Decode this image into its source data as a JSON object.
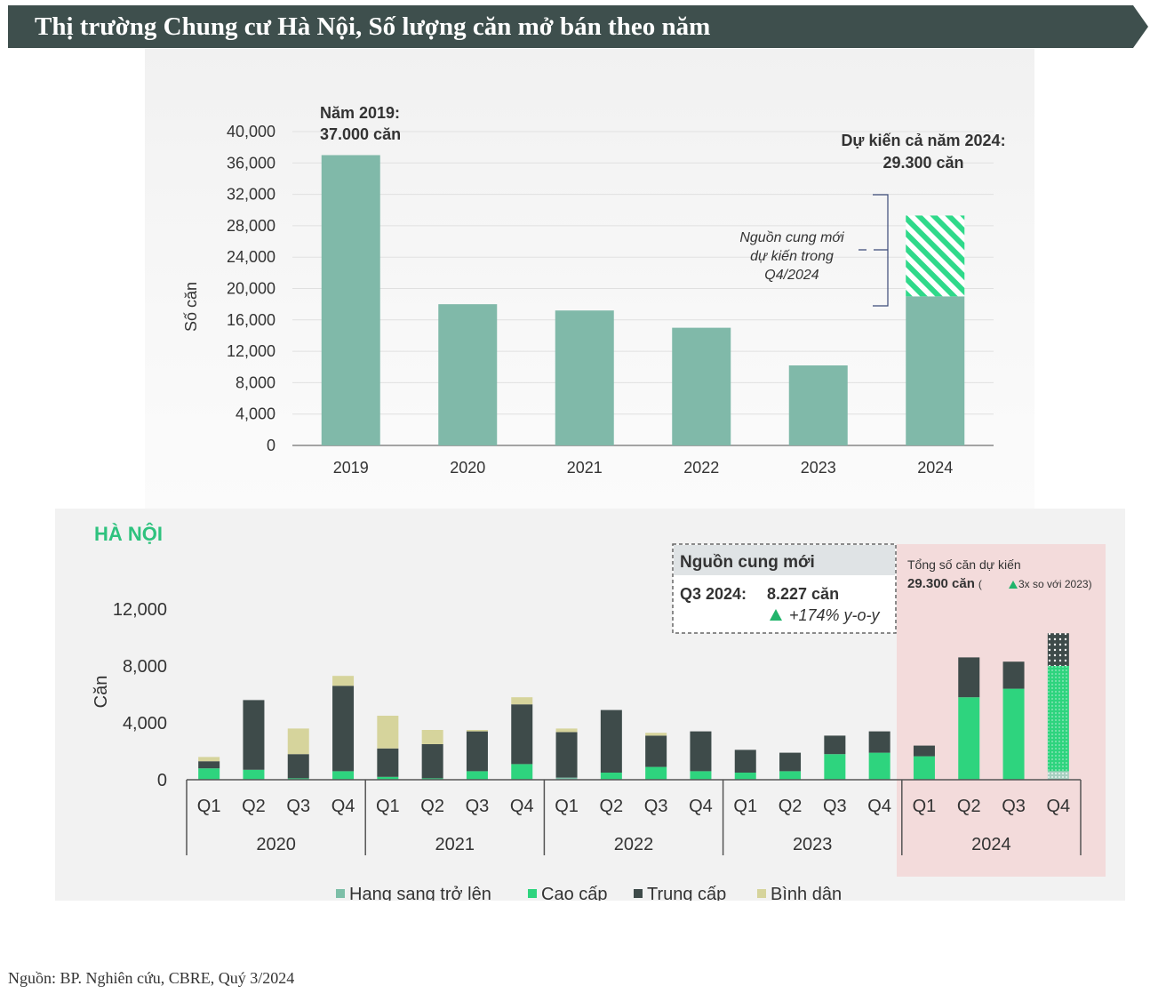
{
  "header": {
    "title": "Thị trường Chung cư Hà Nội, Số lượng căn mở bán theo năm"
  },
  "colors": {
    "banner": "#3e4f4d",
    "annual_bar": "#80b9a9",
    "hatch": "#2fd98a",
    "luxury": "#7dbfa8",
    "high_end": "#2ed47e",
    "mid_end": "#3e4b4a",
    "affordable": "#d6d49c",
    "forecast_bg": "#f3dbdb"
  },
  "chart_data": [
    {
      "type": "bar",
      "title": "Thị trường Chung cư Hà Nội, Số lượng căn mở bán theo năm",
      "ylabel": "Số căn",
      "ylim": [
        0,
        40000
      ],
      "ytick_labels": [
        "0",
        "4,000",
        "8,000",
        "12,000",
        "16,000",
        "20,000",
        "24,000",
        "28,000",
        "32,000",
        "36,000",
        "40,000"
      ],
      "categories": [
        "2019",
        "2020",
        "2021",
        "2022",
        "2023",
        "2024"
      ],
      "values": [
        37000,
        18000,
        17200,
        15000,
        10200,
        19000
      ],
      "forecast_extra": {
        "category": "2024",
        "value": 10300
      },
      "annotations": {
        "y2019_line1": "Năm 2019:",
        "y2019_line2": "37.000 căn",
        "y2024_line1": "Dự kiến cả năm 2024:",
        "y2024_line2": "29.300 căn",
        "new_supply_line1": "Nguồn cung mới",
        "new_supply_line2": "dự kiến trong",
        "new_supply_line3": "Q4/2024"
      }
    },
    {
      "type": "bar",
      "stacked": true,
      "title": "HÀ NỘI",
      "ylabel": "Căn",
      "ylim": [
        0,
        12000
      ],
      "ytick_labels": [
        "0",
        "4,000",
        "8,000",
        "12,000"
      ],
      "quarters": [
        "Q1",
        "Q2",
        "Q3",
        "Q4",
        "Q1",
        "Q2",
        "Q3",
        "Q4",
        "Q1",
        "Q2",
        "Q3",
        "Q4",
        "Q1",
        "Q2",
        "Q3",
        "Q4",
        "Q1",
        "Q2",
        "Q3",
        "Q4"
      ],
      "years": [
        "2020",
        "2021",
        "2022",
        "2023",
        "2024"
      ],
      "series": [
        {
          "name": "Hạng sang trở lên",
          "values": [
            0,
            0,
            0,
            0,
            0,
            0,
            0,
            0,
            150,
            0,
            0,
            0,
            0,
            0,
            0,
            0,
            0,
            0,
            0,
            600
          ]
        },
        {
          "name": "Cao cấp",
          "values": [
            800,
            700,
            100,
            600,
            200,
            100,
            600,
            1100,
            0,
            500,
            900,
            600,
            500,
            600,
            1800,
            1900,
            1650,
            5800,
            6400,
            7400
          ]
        },
        {
          "name": "Trung cấp",
          "values": [
            500,
            4900,
            1700,
            6000,
            2000,
            2400,
            2800,
            4200,
            3200,
            4400,
            2200,
            2800,
            1600,
            1300,
            1300,
            1500,
            750,
            2800,
            1900,
            2300
          ]
        },
        {
          "name": "Bình dân",
          "values": [
            300,
            0,
            1800,
            700,
            2300,
            1000,
            100,
            500,
            250,
            0,
            200,
            0,
            0,
            0,
            0,
            0,
            0,
            0,
            0,
            0
          ]
        }
      ],
      "forecast_quarter": "Q4 2024",
      "callout": {
        "title": "Nguồn cung mới",
        "period": "Q3 2024:",
        "value": "8.227 căn",
        "change_icon": "up-triangle-icon",
        "change": "+174% y-o-y"
      },
      "forecast_note": {
        "line1": "Tổng số căn dự kiến",
        "line2": "29.300 căn",
        "line2_extra": "3x so với 2023)",
        "line2_prefix": "("
      }
    }
  ],
  "source": "Nguồn: BP. Nghiên cứu, CBRE, Quý 3/2024"
}
